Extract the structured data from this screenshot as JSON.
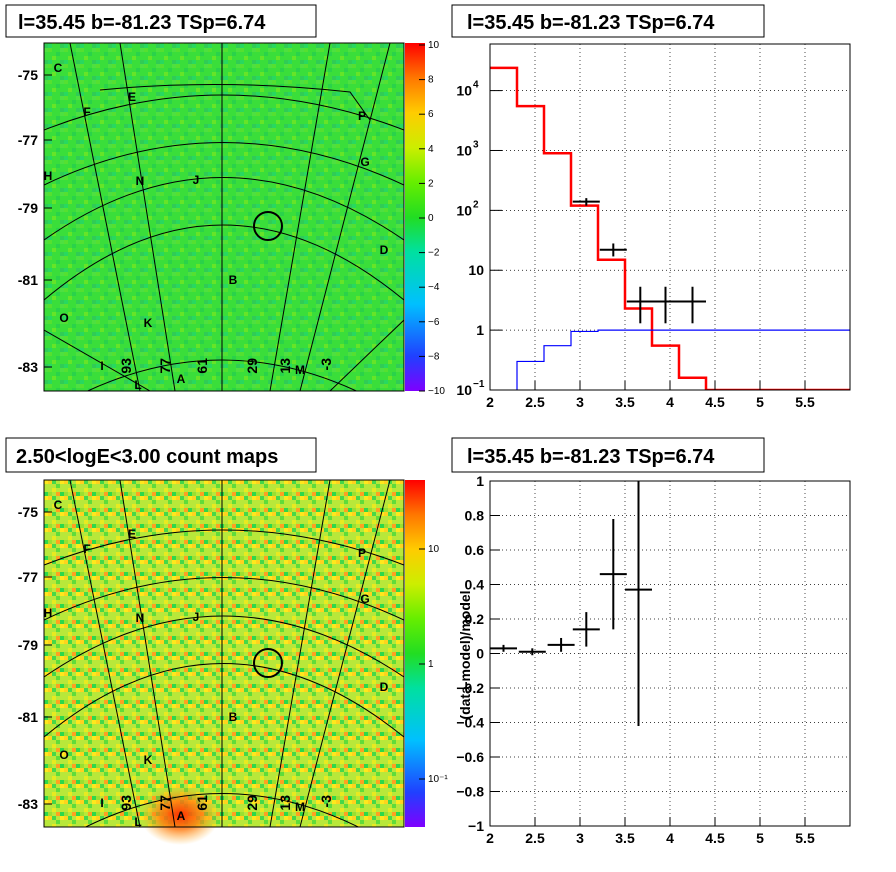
{
  "panels": {
    "tl": {
      "title": "l=35.45 b=-81.23 TSp=6.74"
    },
    "tr": {
      "title": "l=35.45 b=-81.23 TSp=6.74"
    },
    "bl": {
      "title": "2.50<logE<3.00 count maps"
    },
    "br": {
      "title": "l=35.45 b=-81.23 TSp=6.74"
    }
  },
  "colors": {
    "data": "#000000",
    "model": "#ff0000",
    "source": "#0000ff",
    "bg_map": "#33dd33"
  },
  "map_axes": {
    "lat_ticks": [
      "-75",
      "-77",
      "-79",
      "-81",
      "-83"
    ],
    "lon_ticks": [
      "93",
      "77",
      "61",
      "29",
      "13",
      "-3"
    ],
    "region_labels": [
      "C",
      "E",
      "F",
      "P",
      "G",
      "H",
      "N",
      "J",
      "D",
      "B",
      "O",
      "K",
      "I",
      "L",
      "A",
      "M"
    ]
  },
  "chart_data": [
    {
      "type": "heatmap",
      "title": "l=35.45 b=-81.23 TSp=6.74",
      "colorbar": {
        "range": [
          -10,
          10
        ],
        "ticks": [
          "10",
          "8",
          "6",
          "4",
          "2",
          "0",
          "−2",
          "−4",
          "−6",
          "−8",
          "−10"
        ]
      },
      "ylim": [
        -84,
        -74
      ]
    },
    {
      "type": "line",
      "title": "l=35.45 b=-81.23 TSp=6.74",
      "xlim": [
        2,
        6
      ],
      "ylim": [
        0.1,
        60000
      ],
      "yscale": "log",
      "xticks": [
        "2",
        "2.5",
        "3",
        "3.5",
        "4",
        "4.5",
        "5",
        "5.5"
      ],
      "yticks": [
        {
          "v": 10000,
          "base": "10",
          "exp": "4"
        },
        {
          "v": 1000,
          "base": "10",
          "exp": "3"
        },
        {
          "v": 100,
          "base": "10",
          "exp": "2"
        },
        {
          "v": 10,
          "base": "10",
          "exp": ""
        },
        {
          "v": 1,
          "base": "1",
          "exp": ""
        },
        {
          "v": 0.1,
          "base": "10",
          "exp": "−1"
        }
      ],
      "grid": true,
      "series": [
        {
          "edges": [
            2.0,
            2.3,
            2.6,
            2.9,
            3.2,
            3.5,
            3.8,
            4.1,
            4.4,
            6.0
          ],
          "values": [
            24000,
            5500,
            900,
            120,
            15,
            2.3,
            0.55,
            0.16,
            0.1
          ]
        },
        {
          "edges": [
            2.3,
            2.6,
            2.9,
            3.2,
            6.0
          ],
          "values": [
            0.3,
            0.55,
            0.95,
            1.0
          ]
        }
      ],
      "points": [
        {
          "x": 3.07,
          "y": 140,
          "xerr": 0.15,
          "ylo": 120,
          "yhi": 160
        },
        {
          "x": 3.37,
          "y": 22,
          "xerr": 0.15,
          "ylo": 17,
          "yhi": 28
        },
        {
          "x": 3.67,
          "y": 3,
          "xerr": 0.15,
          "ylo": 1.3,
          "yhi": 5.3
        },
        {
          "x": 3.95,
          "y": 3,
          "xerr": 0.15,
          "ylo": 1.3,
          "yhi": 5.3
        },
        {
          "x": 4.25,
          "y": 3,
          "xerr": 0.15,
          "ylo": 1.3,
          "yhi": 5.3
        }
      ]
    },
    {
      "type": "heatmap",
      "title": "2.50<logE<3.00 count maps",
      "colorbar": {
        "scale": "log",
        "ticks": [
          "10",
          "1",
          "10⁻¹"
        ]
      }
    },
    {
      "type": "scatter",
      "title": "l=35.45 b=-81.23 TSp=6.74",
      "ylabel": "(data-model)/model",
      "xlim": [
        2,
        6
      ],
      "ylim": [
        -1,
        1
      ],
      "xticks": [
        "2",
        "2.5",
        "3",
        "3.5",
        "4",
        "4.5",
        "5",
        "5.5"
      ],
      "yticks": [
        "1",
        "0.8",
        "0.6",
        "0.4",
        "0.2",
        "0",
        "−0.2",
        "−0.4",
        "−0.6",
        "−0.8",
        "−1"
      ],
      "grid": true,
      "points": [
        {
          "x": 2.15,
          "y": 0.03,
          "xerr": 0.15,
          "ylo": 0.01,
          "yhi": 0.05
        },
        {
          "x": 2.47,
          "y": 0.01,
          "xerr": 0.15,
          "ylo": -0.01,
          "yhi": 0.03
        },
        {
          "x": 2.79,
          "y": 0.05,
          "xerr": 0.15,
          "ylo": 0.01,
          "yhi": 0.09
        },
        {
          "x": 3.07,
          "y": 0.14,
          "xerr": 0.15,
          "ylo": 0.04,
          "yhi": 0.24
        },
        {
          "x": 3.37,
          "y": 0.46,
          "xerr": 0.15,
          "ylo": 0.14,
          "yhi": 0.78
        },
        {
          "x": 3.65,
          "y": 0.37,
          "xerr": 0.15,
          "ylo": -0.42,
          "yhi": 1.0
        }
      ]
    }
  ]
}
